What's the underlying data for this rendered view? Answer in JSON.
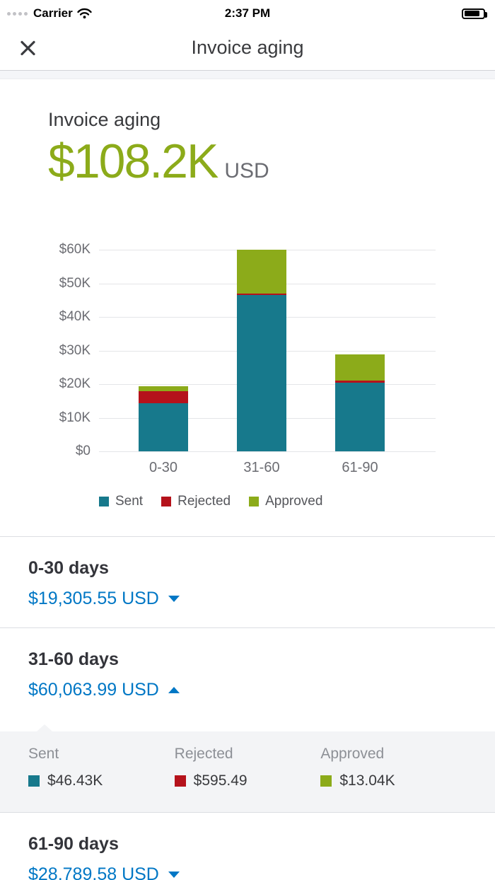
{
  "status_bar": {
    "carrier": "Carrier",
    "time": "2:37 PM"
  },
  "nav": {
    "title": "Invoice aging"
  },
  "summary": {
    "title": "Invoice aging",
    "amount": "$108.2K",
    "currency": "USD"
  },
  "colors": {
    "sent": "#17798C",
    "rejected": "#B5121B",
    "approved": "#8CAB1A",
    "link_blue": "#0077C5",
    "amount_green": "#8CAB1A"
  },
  "chart_data": {
    "type": "bar",
    "stacked": true,
    "title": "Invoice aging",
    "categories": [
      "0-30",
      "31-60",
      "61-90"
    ],
    "series": [
      {
        "name": "Sent",
        "color": "#17798C",
        "values": [
          14300,
          46430,
          20500
        ]
      },
      {
        "name": "Rejected",
        "color": "#B5121B",
        "values": [
          3500,
          595.49,
          500
        ]
      },
      {
        "name": "Approved",
        "color": "#8CAB1A",
        "values": [
          1505.55,
          13038.5,
          7789.58
        ]
      }
    ],
    "ylim": [
      0,
      60000
    ],
    "yticks": [
      0,
      10000,
      20000,
      30000,
      40000,
      50000,
      60000
    ],
    "ytick_labels": [
      "$0",
      "$10K",
      "$20K",
      "$30K",
      "$40K",
      "$50K",
      "$60K"
    ],
    "legend": [
      "Sent",
      "Rejected",
      "Approved"
    ],
    "legend_position": "bottom",
    "grid": true
  },
  "sections": [
    {
      "label": "0-30 days",
      "amount": "$19,305.55 USD",
      "expanded": false
    },
    {
      "label": "31-60 days",
      "amount": "$60,063.99 USD",
      "expanded": true,
      "details": [
        {
          "name": "Sent",
          "value": "$46.43K",
          "color": "#17798C"
        },
        {
          "name": "Rejected",
          "value": "$595.49",
          "color": "#B5121B"
        },
        {
          "name": "Approved",
          "value": "$13.04K",
          "color": "#8CAB1A"
        }
      ]
    },
    {
      "label": "61-90 days",
      "amount": "$28,789.58 USD",
      "expanded": false
    }
  ]
}
